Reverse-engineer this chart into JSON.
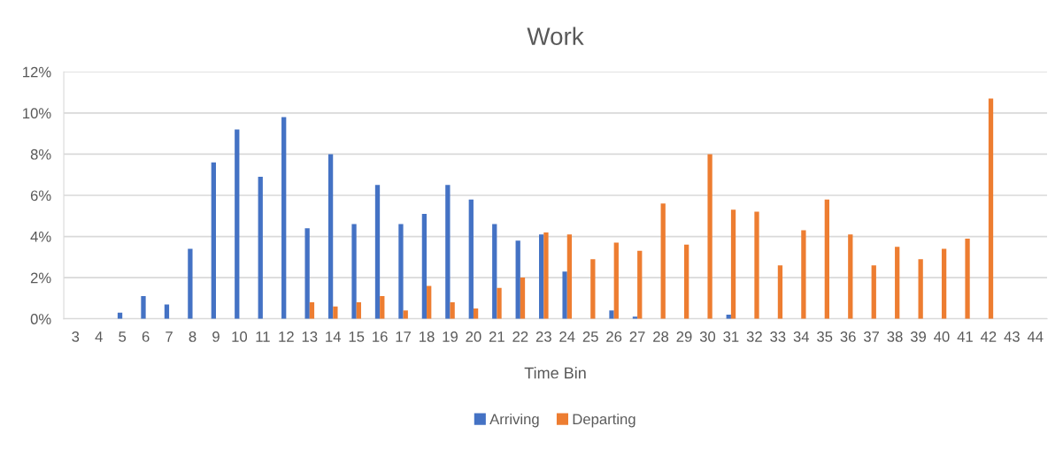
{
  "chart_data": {
    "type": "bar",
    "title": "Work",
    "xlabel": "Time Bin",
    "categories": [
      "3",
      "4",
      "5",
      "6",
      "7",
      "8",
      "9",
      "10",
      "11",
      "12",
      "13",
      "14",
      "15",
      "16",
      "17",
      "18",
      "19",
      "20",
      "21",
      "22",
      "23",
      "24",
      "25",
      "26",
      "27",
      "28",
      "29",
      "30",
      "31",
      "32",
      "33",
      "34",
      "35",
      "36",
      "37",
      "38",
      "39",
      "40",
      "41",
      "42",
      "43",
      "44"
    ],
    "series": [
      {
        "name": "Arriving",
        "color": "#4472c4",
        "values": [
          null,
          null,
          0.3,
          1.1,
          0.7,
          3.4,
          7.6,
          9.2,
          6.9,
          9.8,
          4.4,
          8.0,
          4.6,
          6.5,
          4.6,
          5.1,
          6.5,
          5.8,
          4.6,
          3.8,
          4.1,
          2.3,
          null,
          0.4,
          0.1,
          null,
          null,
          null,
          0.2,
          null,
          null,
          null,
          null,
          null,
          null,
          null,
          null,
          null,
          null,
          null,
          null,
          null
        ]
      },
      {
        "name": "Departing",
        "color": "#ed7d31",
        "values": [
          null,
          null,
          null,
          null,
          null,
          null,
          null,
          null,
          null,
          null,
          0.8,
          0.6,
          0.8,
          1.1,
          0.4,
          1.6,
          0.8,
          0.5,
          1.5,
          2.0,
          4.2,
          4.1,
          2.9,
          3.7,
          3.3,
          5.6,
          3.6,
          8.0,
          5.3,
          5.2,
          2.6,
          4.3,
          5.8,
          4.1,
          2.6,
          3.5,
          2.9,
          3.4,
          3.9,
          10.7,
          null,
          null
        ]
      }
    ],
    "ylim": [
      0,
      12
    ],
    "yticks": [
      {
        "value": 0,
        "label": "0%"
      },
      {
        "value": 2,
        "label": "2%"
      },
      {
        "value": 4,
        "label": "4%"
      },
      {
        "value": 6,
        "label": "6%"
      },
      {
        "value": 8,
        "label": "8%"
      },
      {
        "value": 10,
        "label": "10%"
      },
      {
        "value": 12,
        "label": "12%"
      }
    ],
    "grid": "y",
    "legend": "bottom"
  }
}
